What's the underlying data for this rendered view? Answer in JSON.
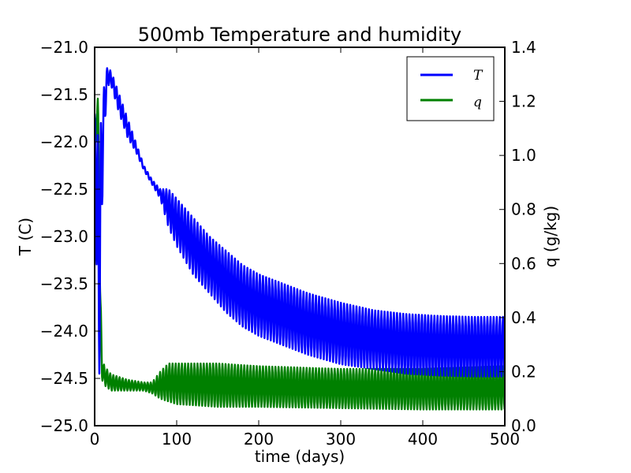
{
  "chart_data": {
    "type": "line",
    "title": "500mb Temperature and humidity",
    "xlabel": "time (days)",
    "ylabel": "T (C)",
    "y2label": "q (g/kg)",
    "xlim": [
      0,
      500
    ],
    "ylim": [
      -25.0,
      -21.0
    ],
    "y2lim": [
      0.0,
      1.4
    ],
    "xticks": [
      "0",
      "100",
      "200",
      "300",
      "400",
      "500"
    ],
    "yticks": [
      "−21.0",
      "−21.5",
      "−22.0",
      "−22.5",
      "−23.0",
      "−23.5",
      "−24.0",
      "−24.5",
      "−25.0"
    ],
    "y2ticks": [
      "1.4",
      "1.2",
      "1.0",
      "0.8",
      "0.6",
      "0.4",
      "0.2",
      "0.0"
    ],
    "grid": false,
    "legend_position": "top-right",
    "series": [
      {
        "name": "T",
        "axis": "left",
        "color": "#0000ff",
        "oscillation_period_days": 3.8,
        "x": [
          0,
          3,
          6,
          10,
          15,
          20,
          30,
          40,
          50,
          60,
          70,
          80,
          90,
          100,
          120,
          140,
          160,
          180,
          200,
          230,
          260,
          300,
          340,
          380,
          420,
          460,
          500
        ],
        "y_max": [
          -21.7,
          -21.9,
          -22.0,
          -21.5,
          -21.22,
          -21.25,
          -21.5,
          -21.75,
          -22.0,
          -22.25,
          -22.4,
          -22.5,
          -22.5,
          -22.6,
          -22.8,
          -23.0,
          -23.15,
          -23.3,
          -23.4,
          -23.5,
          -23.6,
          -23.7,
          -23.78,
          -23.82,
          -23.84,
          -23.85,
          -23.85
        ],
        "y_min": [
          -21.8,
          -24.0,
          -24.5,
          -22.3,
          -21.4,
          -21.4,
          -21.7,
          -21.95,
          -22.1,
          -22.3,
          -22.45,
          -22.6,
          -22.9,
          -23.1,
          -23.4,
          -23.6,
          -23.8,
          -23.95,
          -24.05,
          -24.15,
          -24.25,
          -24.35,
          -24.4,
          -24.45,
          -24.47,
          -24.48,
          -24.48
        ]
      },
      {
        "name": "q",
        "axis": "right",
        "color": "#008000",
        "oscillation_period_days": 3.8,
        "x": [
          0,
          2,
          4,
          5,
          7,
          9,
          12,
          20,
          40,
          60,
          70,
          80,
          90,
          100,
          150,
          200,
          300,
          400,
          500
        ],
        "y_max": [
          1.15,
          1.12,
          1.22,
          1.0,
          0.5,
          0.25,
          0.22,
          0.19,
          0.17,
          0.16,
          0.16,
          0.2,
          0.23,
          0.23,
          0.23,
          0.22,
          0.21,
          0.21,
          0.22
        ],
        "y_min": [
          1.1,
          1.05,
          1.2,
          0.9,
          0.3,
          0.17,
          0.15,
          0.13,
          0.13,
          0.13,
          0.12,
          0.1,
          0.09,
          0.08,
          0.07,
          0.07,
          0.065,
          0.06,
          0.06
        ]
      }
    ]
  }
}
